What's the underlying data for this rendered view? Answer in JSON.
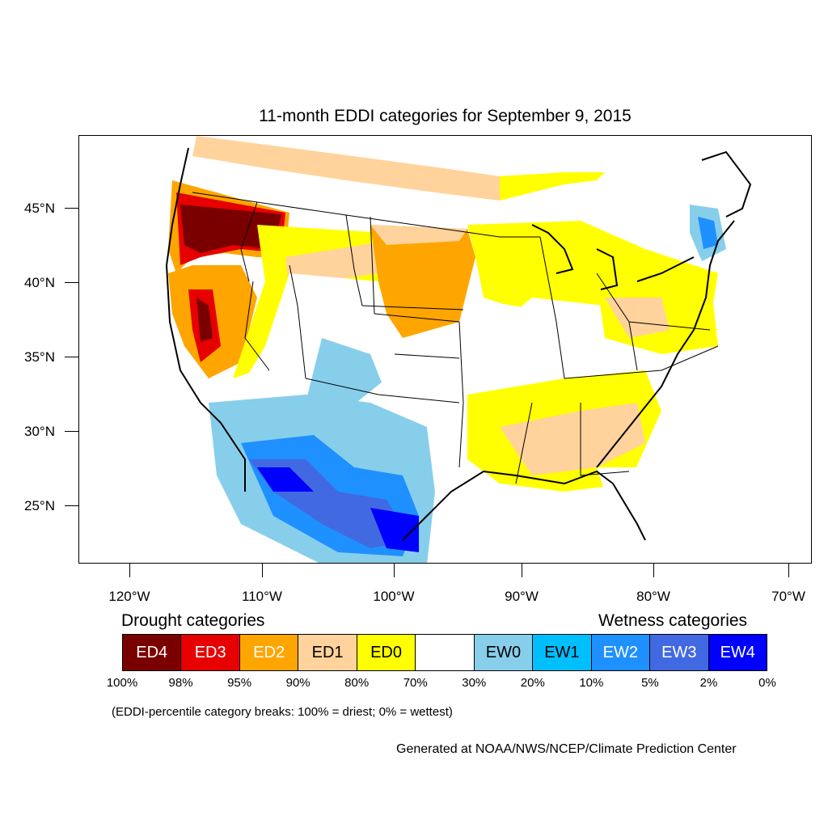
{
  "title": "11-month EDDI categories for September 9, 2015",
  "lat_labels": [
    "45°N",
    "40°N",
    "35°N",
    "30°N",
    "25°N"
  ],
  "lon_labels": [
    "120°W",
    "110°W",
    "100°W",
    "90°W",
    "80°W",
    "70°W"
  ],
  "legend": {
    "drought_heading": "Drought categories",
    "wetness_heading": "Wetness categories",
    "categories": [
      {
        "label": "ED4",
        "color": "#7a0000",
        "text_color": "#ffffff"
      },
      {
        "label": "ED3",
        "color": "#e60000",
        "text_color": "#ffffff"
      },
      {
        "label": "ED2",
        "color": "#ffa500",
        "text_color": "#ffffff"
      },
      {
        "label": "ED1",
        "color": "#ffd39b",
        "text_color": "#000000"
      },
      {
        "label": "ED0",
        "color": "#ffff00",
        "text_color": "#000000"
      },
      {
        "label": "",
        "color": "#ffffff",
        "text_color": "#000000"
      },
      {
        "label": "EW0",
        "color": "#87ceeb",
        "text_color": "#000000"
      },
      {
        "label": "EW1",
        "color": "#00bfff",
        "text_color": "#000000"
      },
      {
        "label": "EW2",
        "color": "#1e90ff",
        "text_color": "#ffffff"
      },
      {
        "label": "EW3",
        "color": "#4169e1",
        "text_color": "#ffffff"
      },
      {
        "label": "EW4",
        "color": "#0000ff",
        "text_color": "#ffffff"
      }
    ],
    "breaks": [
      "100%",
      "98%",
      "95%",
      "90%",
      "80%",
      "70%",
      "30%",
      "20%",
      "10%",
      "5%",
      "2%",
      "0%"
    ]
  },
  "note": "(EDDI-percentile category breaks: 100% = driest; 0% = wettest)",
  "credit": "Generated at NOAA/NWS/NCEP/Climate Prediction Center"
}
